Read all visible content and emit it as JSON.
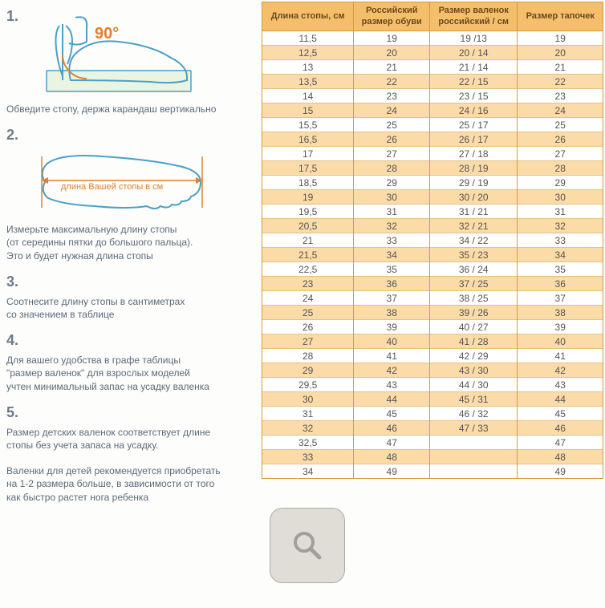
{
  "steps": [
    {
      "num": "1.",
      "text": "Обведите стопу, держа карандаш вертикально"
    },
    {
      "num": "2.",
      "text": "Измерьте максимальную длину стопы\n(от середины пятки до большого пальца).\nЭто и будет нужная длина стопы"
    },
    {
      "num": "3.",
      "text": "Соотнесите длину стопы в сантиметрах\nсо значением в таблице"
    },
    {
      "num": "4.",
      "text": "Для вашего удобства в графе таблицы\n\"размер валенок\" для взрослых моделей\nучтен минимальный запас на усадку валенка"
    },
    {
      "num": "5.",
      "text": "Размер детских валенок соответствует длине\nстопы без учета запаса на усадку.\n\nВаленки для детей рекомендуется приобретать\nна 1-2 размера больше, в зависимости от того\nкак быстро растет нога ребенка"
    }
  ],
  "diagram": {
    "angle_label": "90°",
    "foot_length_label": "длина Вашей стопы в см"
  },
  "table": {
    "headers": [
      "Длина стопы, см",
      "Российский\nразмер обуви",
      "Размер валенок\nроссийский / см",
      "Размер тапочек"
    ],
    "rows": [
      [
        "11,5",
        "19",
        "19 /13",
        "19"
      ],
      [
        "12,5",
        "20",
        "20 / 14",
        "20"
      ],
      [
        "13",
        "21",
        "21 / 14",
        "21"
      ],
      [
        "13,5",
        "22",
        "22 / 15",
        "22"
      ],
      [
        "14",
        "23",
        "23 / 15",
        "23"
      ],
      [
        "15",
        "24",
        "24 / 16",
        "24"
      ],
      [
        "15,5",
        "25",
        "25 / 17",
        "25"
      ],
      [
        "16,5",
        "26",
        "26 / 17",
        "26"
      ],
      [
        "17",
        "27",
        "27 / 18",
        "27"
      ],
      [
        "17,5",
        "28",
        "28 / 19",
        "28"
      ],
      [
        "18,5",
        "29",
        "29 / 19",
        "29"
      ],
      [
        "19",
        "30",
        "30 / 20",
        "30"
      ],
      [
        "19,5",
        "31",
        "31 / 21",
        "31"
      ],
      [
        "20,5",
        "32",
        "32 / 21",
        "32"
      ],
      [
        "21",
        "33",
        "34 / 22",
        "33"
      ],
      [
        "21,5",
        "34",
        "35 / 23",
        "34"
      ],
      [
        "22,5",
        "35",
        "36 / 24",
        "35"
      ],
      [
        "23",
        "36",
        "37 / 25",
        "36"
      ],
      [
        "24",
        "37",
        "38 / 25",
        "37"
      ],
      [
        "25",
        "38",
        "39 / 26",
        "38"
      ],
      [
        "26",
        "39",
        "40 / 27",
        "39"
      ],
      [
        "27",
        "40",
        "41 / 28",
        "40"
      ],
      [
        "28",
        "41",
        "42 / 29",
        "41"
      ],
      [
        "29",
        "42",
        "43 / 30",
        "42"
      ],
      [
        "29,5",
        "43",
        "44 / 30",
        "43"
      ],
      [
        "30",
        "44",
        "45 / 31",
        "44"
      ],
      [
        "31",
        "45",
        "46 / 32",
        "45"
      ],
      [
        "32",
        "46",
        "47 / 33",
        "46"
      ],
      [
        "32,5",
        "47",
        "",
        "47"
      ],
      [
        "33",
        "48",
        "",
        "48"
      ],
      [
        "34",
        "49",
        "",
        "49"
      ]
    ],
    "colors": {
      "header_bg": "#f5be6a",
      "header_text": "#6a4a20",
      "border": "#d89840",
      "row_odd_bg": "#ffffff",
      "row_even_bg": "#fbdba8",
      "cell_text": "#555555"
    }
  },
  "illustration_colors": {
    "line": "#4aa0c8",
    "accent": "#e08030",
    "paper": "#d8eec8"
  }
}
